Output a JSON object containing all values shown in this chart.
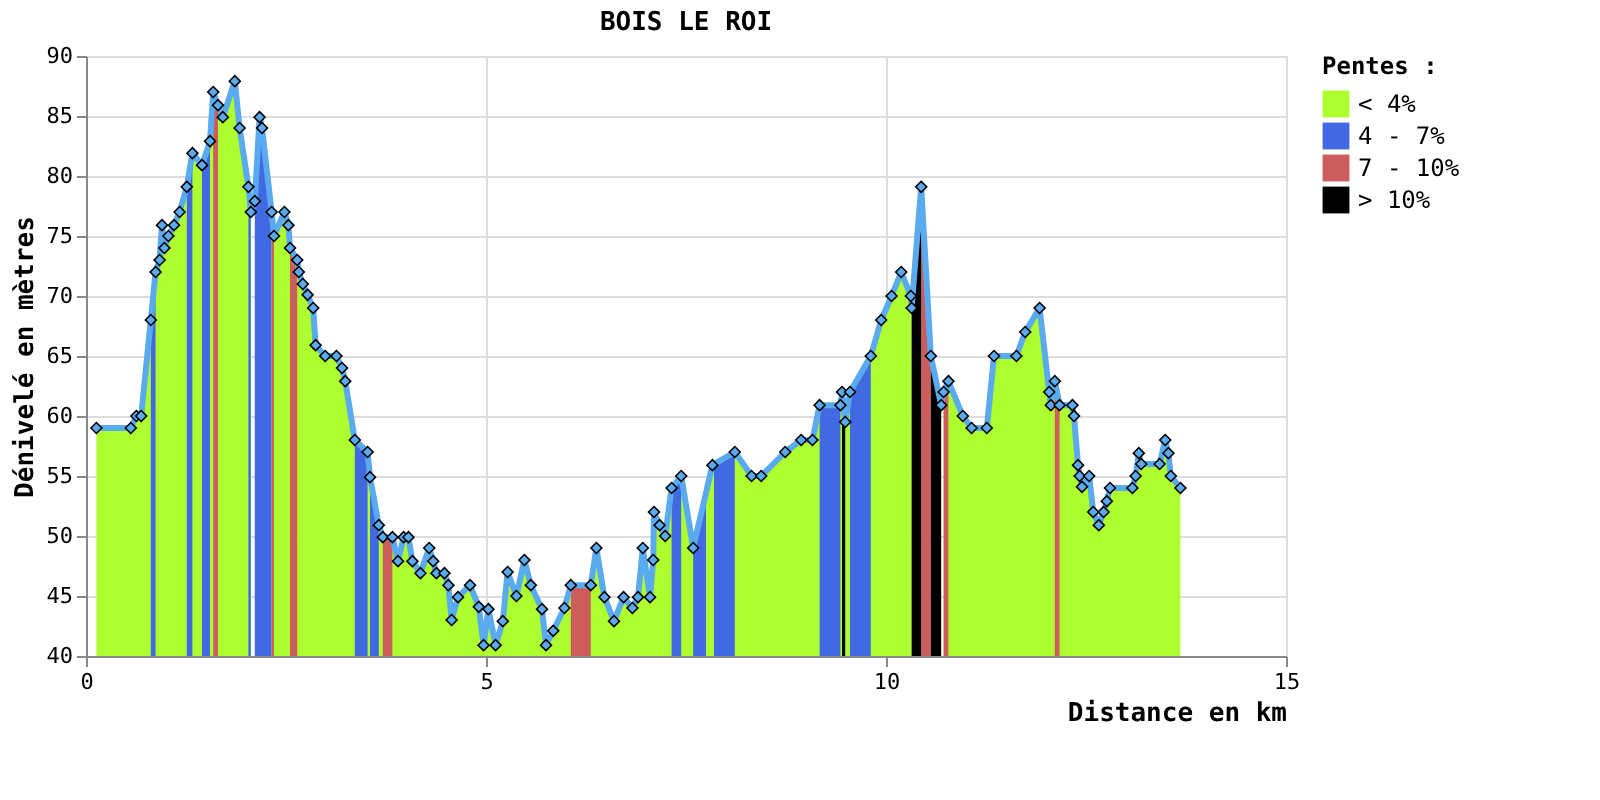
{
  "chart_data": {
    "type": "area",
    "title": "BOIS LE ROI",
    "xlabel": "Distance en km",
    "ylabel": "Dénivelé en mètres",
    "legend_title": "Pentes :",
    "x": [
      0.13,
      0.56,
      0.63,
      0.69,
      0.81,
      0.87,
      0.92,
      0.95,
      0.98,
      1.03,
      1.1,
      1.17,
      1.26,
      1.33,
      1.45,
      1.55,
      1.59,
      1.65,
      1.71,
      1.86,
      1.92,
      2.03,
      2.06,
      2.11,
      2.17,
      2.2,
      2.32,
      2.35,
      2.48,
      2.53,
      2.55,
      2.64,
      2.66,
      2.71,
      2.77,
      2.84,
      2.87,
      2.99,
      3.13,
      3.2,
      3.24,
      3.36,
      3.52,
      3.55,
      3.66,
      3.71,
      3.83,
      3.9,
      3.97,
      4.03,
      4.08,
      4.18,
      4.29,
      4.34,
      4.38,
      4.48,
      4.53,
      4.57,
      4.65,
      4.8,
      4.91,
      4.97,
      5.03,
      5.12,
      5.21,
      5.27,
      5.38,
      5.48,
      5.56,
      5.7,
      5.75,
      5.84,
      5.98,
      6.06,
      6.31,
      6.38,
      6.48,
      6.6,
      6.72,
      6.83,
      6.9,
      6.96,
      7.05,
      7.09,
      7.1,
      7.17,
      7.24,
      7.32,
      7.44,
      7.59,
      7.83,
      8.11,
      8.32,
      8.44,
      8.74,
      8.94,
      9.08,
      9.17,
      9.43,
      9.45,
      9.49,
      9.55,
      9.81,
      9.94,
      10.07,
      10.19,
      10.31,
      10.32,
      10.44,
      10.56,
      10.69,
      10.72,
      10.78,
      10.96,
      11.07,
      11.26,
      11.35,
      11.63,
      11.74,
      11.92,
      12.04,
      12.06,
      12.11,
      12.17,
      12.33,
      12.35,
      12.4,
      12.42,
      12.45,
      12.54,
      12.59,
      12.66,
      12.72,
      12.76,
      12.8,
      13.08,
      13.12,
      13.16,
      13.19,
      13.42,
      13.49,
      13.53,
      13.56,
      13.68
    ],
    "series": [
      {
        "name": "< 4%",
        "color": "#adff2f",
        "values": [
          59.0,
          59.0,
          60.0,
          60.0,
          68.0,
          72.0,
          73.0,
          75.9,
          74.0,
          75.0,
          75.9,
          77.0,
          79.1,
          81.9,
          80.9,
          82.9,
          87.0,
          85.9,
          84.9,
          87.9,
          84.0,
          79.1,
          77.0,
          null,
          null,
          null,
          77.0,
          75.0,
          77.0,
          75.9,
          74.0,
          73.0,
          72.0,
          71.0,
          70.1,
          69.0,
          65.9,
          65.0,
          65.0,
          64.0,
          62.9,
          58.0,
          57.0,
          54.9,
          50.9,
          49.9,
          49.9,
          47.9,
          49.9,
          49.9,
          47.9,
          46.9,
          49.0,
          47.9,
          46.9,
          46.9,
          45.9,
          43.0,
          44.9,
          45.9,
          44.1,
          40.9,
          43.9,
          40.9,
          42.9,
          47.0,
          45.0,
          48.0,
          45.9,
          43.9,
          40.9,
          42.1,
          44.0,
          45.9,
          45.9,
          49.0,
          44.9,
          42.9,
          44.9,
          44.0,
          44.9,
          49.0,
          44.9,
          48.0,
          52.0,
          50.9,
          50.0,
          54.0,
          55.0,
          49.0,
          55.9,
          57.0,
          55.0,
          55.0,
          57.0,
          58.0,
          58.0,
          60.9,
          60.9,
          62.0,
          59.5,
          62.0,
          65.0,
          68.0,
          70.0,
          72.0,
          70.0,
          69.0,
          null,
          null,
          null,
          62.0,
          62.9,
          60.0,
          59.0,
          59.0,
          65.0,
          65.0,
          67.0,
          69.0,
          62.0,
          60.9,
          62.9,
          60.9,
          60.9,
          60.0,
          55.9,
          55.0,
          54.1,
          55.0,
          52.0,
          50.9,
          52.0,
          52.9,
          54.0,
          54.0,
          55.0,
          56.9,
          56.0,
          56.0,
          58.0,
          56.9,
          55.0,
          54.0
        ]
      },
      {
        "name": "4 - 7%",
        "color": "#4169e1",
        "x": [
          0.81,
          0.87,
          1.0,
          1.26,
          1.33,
          1.4,
          1.45,
          1.55,
          1.8,
          2.03,
          2.06,
          2.08,
          2.11,
          2.17,
          2.2,
          2.32,
          3.0,
          3.36,
          3.52,
          3.53,
          3.55,
          3.66,
          5.0,
          7.32,
          7.44,
          7.5,
          7.59,
          7.75,
          7.8,
          7.85,
          8.11,
          8.6,
          9.17,
          9.43,
          9.5,
          9.55,
          9.81
        ],
        "values": [
          68.0,
          72.0,
          null,
          79.1,
          81.9,
          null,
          80.9,
          82.9,
          null,
          79.1,
          77.0,
          null,
          77.9,
          84.9,
          84.0,
          77.0,
          null,
          58.0,
          57.0,
          null,
          54.9,
          50.9,
          null,
          54.0,
          55.0,
          null,
          49.0,
          53.9,
          null,
          56.0,
          57.0,
          null,
          60.9,
          60.9,
          null,
          62.0,
          65.0
        ]
      },
      {
        "name": "7 - 10%",
        "color": "#cd5c5c",
        "x": [
          1.59,
          1.65,
          2.0,
          2.32,
          2.35,
          2.45,
          2.55,
          2.64,
          3.0,
          3.71,
          3.83,
          5.0,
          6.06,
          6.31,
          8.0,
          10.44,
          10.56,
          10.6,
          10.72,
          10.78,
          11.5,
          12.11,
          12.17
        ],
        "values": [
          87.0,
          85.9,
          null,
          77.0,
          75.0,
          null,
          74.0,
          73.0,
          null,
          49.9,
          49.9,
          null,
          45.9,
          45.9,
          null,
          79.1,
          65.0,
          null,
          62.0,
          62.9,
          null,
          62.9,
          60.9
        ]
      },
      {
        "name": "> 10%",
        "color": "#000000",
        "x": [
          9.45,
          9.49,
          9.9,
          10.32,
          10.44,
          10.5,
          10.56,
          10.69
        ],
        "values": [
          62.0,
          59.5,
          null,
          69.0,
          79.1,
          null,
          65.0,
          60.9
        ]
      },
      {
        "type": "line",
        "color": "#5aaaf0",
        "marker": "diamond",
        "values": [
          59.0,
          59.0,
          60.0,
          60.0,
          68.0,
          72.0,
          73.0,
          75.9,
          74.0,
          75.0,
          75.9,
          77.0,
          79.1,
          81.9,
          80.9,
          82.9,
          87.0,
          85.9,
          84.9,
          87.9,
          84.0,
          79.1,
          77.0,
          77.9,
          84.9,
          84.0,
          77.0,
          75.0,
          77.0,
          75.9,
          74.0,
          73.0,
          72.0,
          71.0,
          70.1,
          69.0,
          65.9,
          65.0,
          65.0,
          64.0,
          62.9,
          58.0,
          57.0,
          54.9,
          50.9,
          49.9,
          49.9,
          47.9,
          49.9,
          49.9,
          47.9,
          46.9,
          49.0,
          47.9,
          46.9,
          46.9,
          45.9,
          43.0,
          44.9,
          45.9,
          44.1,
          40.9,
          43.9,
          40.9,
          42.9,
          47.0,
          45.0,
          48.0,
          45.9,
          43.9,
          40.9,
          42.1,
          44.0,
          45.9,
          45.9,
          49.0,
          44.9,
          42.9,
          44.9,
          44.0,
          44.9,
          49.0,
          44.9,
          48.0,
          52.0,
          50.9,
          50.0,
          54.0,
          55.0,
          49.0,
          55.9,
          57.0,
          55.0,
          55.0,
          57.0,
          58.0,
          58.0,
          60.9,
          60.9,
          62.0,
          59.5,
          62.0,
          65.0,
          68.0,
          70.0,
          72.0,
          70.0,
          69.0,
          79.1,
          65.0,
          60.9,
          62.0,
          62.9,
          60.0,
          59.0,
          59.0,
          65.0,
          65.0,
          67.0,
          69.0,
          62.0,
          60.9,
          62.9,
          60.9,
          60.9,
          60.0,
          55.9,
          55.0,
          54.1,
          55.0,
          52.0,
          50.9,
          52.0,
          52.9,
          54.0,
          54.0,
          55.0,
          56.9,
          56.0,
          56.0,
          58.0,
          56.9,
          55.0,
          54.0
        ]
      }
    ],
    "xlim": [
      0,
      15
    ],
    "xticks": [
      0,
      5,
      10,
      15
    ],
    "ylim": [
      40,
      90
    ],
    "yticks": [
      40,
      45,
      50,
      55,
      60,
      65,
      70,
      75,
      80,
      85,
      90
    ],
    "grid": true,
    "legend": "right"
  }
}
